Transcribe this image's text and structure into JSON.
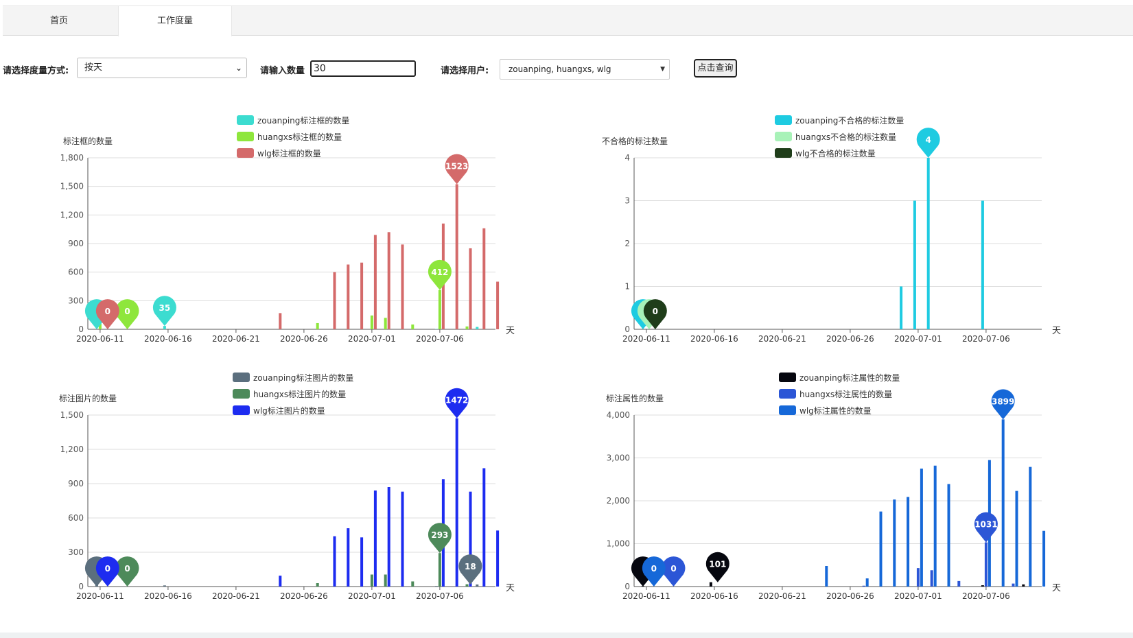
{
  "tabs": [
    {
      "label": "首页"
    },
    {
      "label": "工作度量"
    }
  ],
  "form": {
    "mode_label": "请选择度量方式:",
    "mode_value": "按天",
    "count_label": "请输入数量",
    "count_value": "30",
    "user_label": "请选择用户:",
    "user_value": "zouanping, huangxs, wlg",
    "query_button": "点击查询"
  },
  "chart_data": [
    {
      "type": "bar",
      "ylabel": "标注框的数量",
      "xlabel": "天",
      "ylim": [
        0,
        1800
      ],
      "yticks": [
        0,
        300,
        600,
        900,
        1200,
        1500,
        1800
      ],
      "xticks": [
        "2020-06-11",
        "2020-06-16",
        "2020-06-21",
        "2020-06-26",
        "2020-07-01",
        "2020-07-06"
      ],
      "grid": true,
      "legend": "top-center",
      "series": [
        {
          "name": "zouanping标注框的数量",
          "color": "#3cdcd0",
          "points": [
            [
              0,
              0
            ],
            [
              5,
              35
            ],
            [
              25,
              3
            ],
            [
              28,
              25
            ]
          ],
          "markers": [
            {
              "label": "",
              "x": 0,
              "y": 0
            },
            {
              "label": "35",
              "x": 5,
              "y": 35
            }
          ]
        },
        {
          "name": "huangxs标注框的数量",
          "color": "#8ee63c",
          "points": [
            [
              0,
              60
            ],
            [
              16,
              65
            ],
            [
              20,
              145
            ],
            [
              21,
              120
            ],
            [
              23,
              50
            ],
            [
              25,
              412
            ],
            [
              27,
              30
            ]
          ],
          "markers": [
            {
              "label": "0",
              "x": 2,
              "y": 0
            },
            {
              "label": "412",
              "x": 25,
              "y": 412
            }
          ]
        },
        {
          "name": "wlg标注框的数量",
          "color": "#d46a6a",
          "points": [
            [
              13,
              170
            ],
            [
              17,
              600
            ],
            [
              18,
              680
            ],
            [
              19,
              700
            ],
            [
              20,
              990
            ],
            [
              21,
              1020
            ],
            [
              22,
              890
            ],
            [
              25,
              1110
            ],
            [
              26,
              1523
            ],
            [
              27,
              850
            ],
            [
              28,
              1060
            ],
            [
              29,
              500
            ]
          ],
          "markers": [
            {
              "label": "0",
              "x": 0.3,
              "y": 0
            },
            {
              "label": "1523",
              "x": 26,
              "y": 1523
            }
          ]
        }
      ]
    },
    {
      "type": "bar",
      "ylabel": "不合格的标注数量",
      "xlabel": "天",
      "ylim": [
        0,
        4
      ],
      "yticks": [
        0,
        1,
        2,
        3,
        4
      ],
      "xticks": [
        "2020-06-11",
        "2020-06-16",
        "2020-06-21",
        "2020-06-26",
        "2020-07-01",
        "2020-07-06"
      ],
      "grid": true,
      "legend": "top-center",
      "series": [
        {
          "name": "zouanping不合格的标注数量",
          "color": "#1ecbe1",
          "points": [
            [
              19,
              1
            ],
            [
              20,
              3
            ],
            [
              21,
              4
            ],
            [
              25,
              3
            ]
          ],
          "markers": [
            {
              "label": "",
              "x": 0,
              "y": 0
            },
            {
              "label": "4",
              "x": 21,
              "y": 4
            }
          ]
        },
        {
          "name": "huangxs不合格的标注数量",
          "color": "#a8f2b8",
          "points": [],
          "markers": [
            {
              "label": "",
              "x": 0.2,
              "y": 0
            }
          ]
        },
        {
          "name": "wlg不合格的标注数量",
          "color": "#1f3d1a",
          "points": [],
          "markers": [
            {
              "label": "0",
              "x": 0.4,
              "y": 0
            }
          ]
        }
      ]
    },
    {
      "type": "bar",
      "ylabel": "标注图片的数量",
      "xlabel": "天",
      "ylim": [
        0,
        1500
      ],
      "yticks": [
        0,
        300,
        600,
        900,
        1200,
        1500
      ],
      "xticks": [
        "2020-06-11",
        "2020-06-16",
        "2020-06-21",
        "2020-06-26",
        "2020-07-01",
        "2020-07-06"
      ],
      "grid": true,
      "legend": "top-center",
      "series": [
        {
          "name": "zouanping标注图片的数量",
          "color": "#5b6f7e",
          "points": [
            [
              0,
              30
            ],
            [
              5,
              10
            ],
            [
              25,
              5
            ],
            [
              28,
              18
            ]
          ],
          "markers": [
            {
              "label": "",
              "x": 0,
              "y": 0
            },
            {
              "label": "18",
              "x": 27.5,
              "y": 18
            }
          ]
        },
        {
          "name": "huangxs标注图片的数量",
          "color": "#4d8a5a",
          "points": [
            [
              16,
              30
            ],
            [
              20,
              105
            ],
            [
              21,
              105
            ],
            [
              23,
              45
            ],
            [
              25,
              293
            ],
            [
              27,
              20
            ]
          ],
          "markers": [
            {
              "label": "0",
              "x": 2,
              "y": 0
            },
            {
              "label": "293",
              "x": 25,
              "y": 293
            }
          ]
        },
        {
          "name": "wlg标注图片的数量",
          "color": "#1d2cf0",
          "points": [
            [
              13,
              95
            ],
            [
              17,
              440
            ],
            [
              18,
              510
            ],
            [
              19,
              430
            ],
            [
              20,
              840
            ],
            [
              21,
              870
            ],
            [
              22,
              830
            ],
            [
              25,
              940
            ],
            [
              26,
              1472
            ],
            [
              27,
              830
            ],
            [
              28,
              1035
            ],
            [
              29,
              490
            ]
          ],
          "markers": [
            {
              "label": "0",
              "x": 0.3,
              "y": 0
            },
            {
              "label": "1472",
              "x": 26,
              "y": 1472
            }
          ]
        }
      ]
    },
    {
      "type": "bar",
      "ylabel": "标注属性的数量",
      "xlabel": "天",
      "ylim": [
        0,
        4000
      ],
      "yticks": [
        0,
        1000,
        2000,
        3000,
        4000
      ],
      "xticks": [
        "2020-06-11",
        "2020-06-16",
        "2020-06-21",
        "2020-06-26",
        "2020-07-01",
        "2020-07-06"
      ],
      "grid": true,
      "legend": "top-center",
      "series": [
        {
          "name": "zouanping标注属性的数量",
          "color": "#06070f",
          "points": [
            [
              0,
              15
            ],
            [
              5,
              101
            ],
            [
              25,
              30
            ],
            [
              28,
              50
            ]
          ],
          "markers": [
            {
              "label": "",
              "x": 0,
              "y": 0
            },
            {
              "label": "101",
              "x": 5.5,
              "y": 101
            }
          ]
        },
        {
          "name": "huangxs标注属性的数量",
          "color": "#2c56d6",
          "points": [
            [
              16,
              20
            ],
            [
              20,
              430
            ],
            [
              21,
              380
            ],
            [
              23,
              130
            ],
            [
              25,
              1031
            ],
            [
              27,
              70
            ]
          ],
          "markers": [
            {
              "label": "0",
              "x": 2,
              "y": 0
            },
            {
              "label": "1031",
              "x": 25,
              "y": 1031
            }
          ]
        },
        {
          "name": "wlg标注属性的数量",
          "color": "#1668d8",
          "points": [
            [
              13,
              480
            ],
            [
              16,
              190
            ],
            [
              17,
              1750
            ],
            [
              18,
              2030
            ],
            [
              19,
              2090
            ],
            [
              20,
              2750
            ],
            [
              21,
              2820
            ],
            [
              22,
              2390
            ],
            [
              25,
              2950
            ],
            [
              26,
              3899
            ],
            [
              27,
              2230
            ],
            [
              28,
              2790
            ],
            [
              29,
              1300
            ]
          ],
          "markers": [
            {
              "label": "0",
              "x": 0.3,
              "y": 0
            },
            {
              "label": "3899",
              "x": 26,
              "y": 3899
            }
          ]
        }
      ]
    }
  ]
}
